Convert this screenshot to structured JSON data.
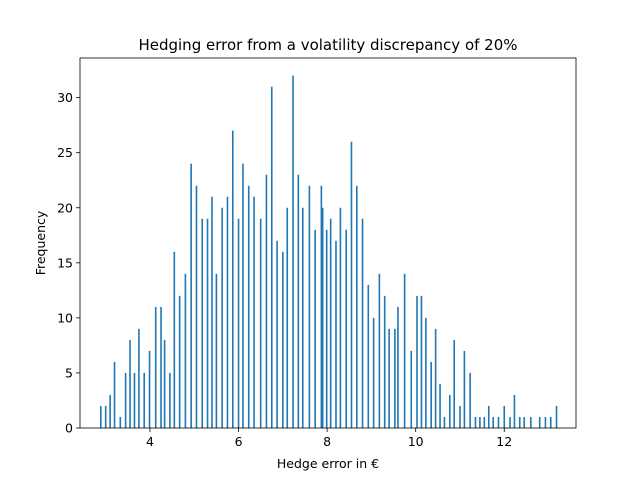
{
  "chart_data": {
    "type": "bar",
    "title": "Hedging error from a volatility discrepancy of 20%",
    "xlabel": "Hedge error in €",
    "ylabel": "Frequency",
    "xlim": [
      2.42,
      13.62
    ],
    "ylim": [
      0,
      33.6
    ],
    "xticks": [
      4,
      6,
      8,
      10,
      12
    ],
    "yticks": [
      0,
      5,
      10,
      15,
      20,
      25,
      30
    ],
    "bar_color": "#1f77b4",
    "grid": false,
    "x": [
      2.89,
      3.0,
      3.1,
      3.2,
      3.33,
      3.45,
      3.55,
      3.65,
      3.75,
      3.87,
      3.99,
      4.13,
      4.25,
      4.33,
      4.45,
      4.55,
      4.67,
      4.8,
      4.93,
      5.05,
      5.18,
      5.3,
      5.4,
      5.5,
      5.63,
      5.75,
      5.87,
      6.0,
      6.1,
      6.23,
      6.35,
      6.5,
      6.63,
      6.75,
      6.87,
      7.0,
      7.1,
      7.23,
      7.35,
      7.45,
      7.6,
      7.73,
      7.87,
      7.9,
      7.99,
      8.08,
      8.2,
      8.3,
      8.43,
      8.55,
      8.67,
      8.8,
      8.93,
      9.05,
      9.18,
      9.3,
      9.4,
      9.53,
      9.6,
      9.75,
      9.9,
      10.03,
      10.13,
      10.23,
      10.35,
      10.45,
      10.55,
      10.65,
      10.77,
      10.87,
      11.0,
      11.1,
      11.23,
      11.35,
      11.45,
      11.55,
      11.65,
      11.75,
      11.87,
      12.0,
      12.13,
      12.23,
      12.35,
      12.45,
      12.6,
      12.8,
      12.93,
      13.05,
      13.18
    ],
    "values": [
      2,
      2,
      3,
      6,
      1,
      5,
      8,
      5,
      9,
      5,
      7,
      11,
      11,
      8,
      5,
      16,
      12,
      14,
      24,
      22,
      19,
      19,
      21,
      14,
      20,
      21,
      27,
      19,
      24,
      22,
      21,
      19,
      23,
      31,
      17,
      16,
      20,
      32,
      23,
      20,
      22,
      18,
      22,
      20,
      18,
      19,
      17,
      20,
      18,
      26,
      22,
      19,
      13,
      10,
      14,
      12,
      9,
      9,
      11,
      14,
      7,
      12,
      12,
      10,
      6,
      9,
      4,
      1,
      3,
      8,
      2,
      7,
      5,
      1,
      1,
      1,
      2,
      1,
      1,
      2,
      1,
      3,
      1,
      1,
      1,
      1,
      1,
      1,
      2
    ]
  }
}
